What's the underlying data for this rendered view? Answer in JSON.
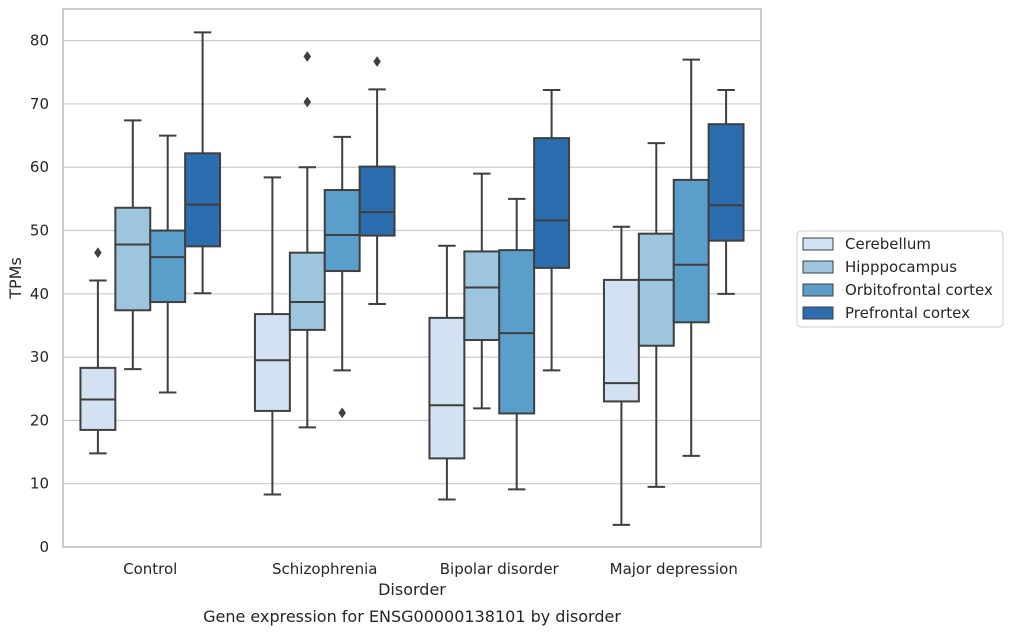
{
  "chart_data": {
    "type": "box",
    "title": "",
    "caption": "Gene expression for ENSG00000138101 by disorder",
    "xlabel": "Disorder",
    "ylabel": "TPMs",
    "ylim": [
      0,
      85
    ],
    "yticks": [
      0,
      10,
      20,
      30,
      40,
      50,
      60,
      70,
      80
    ],
    "grid": "horizontal",
    "legend_position": "right",
    "categories": [
      "Control",
      "Schizophrenia",
      "Bipolar disorder",
      "Major depression"
    ],
    "series": [
      {
        "name": "Cerebellum",
        "color": "#d3e2f2",
        "boxes": [
          {
            "whisker_low": 14.8,
            "q1": 18.5,
            "median": 23.3,
            "q3": 28.3,
            "whisker_high": 42.1,
            "outliers": [
              46.5
            ]
          },
          {
            "whisker_low": 8.3,
            "q1": 21.5,
            "median": 29.5,
            "q3": 36.8,
            "whisker_high": 58.4,
            "outliers": []
          },
          {
            "whisker_low": 7.5,
            "q1": 14.0,
            "median": 22.4,
            "q3": 36.2,
            "whisker_high": 47.6,
            "outliers": []
          },
          {
            "whisker_low": 3.5,
            "q1": 23.0,
            "median": 25.9,
            "q3": 42.2,
            "whisker_high": 50.6,
            "outliers": []
          }
        ]
      },
      {
        "name": "Hipppocampus",
        "color": "#9dc5de",
        "boxes": [
          {
            "whisker_low": 28.1,
            "q1": 37.4,
            "median": 47.8,
            "q3": 53.6,
            "whisker_high": 67.4,
            "outliers": []
          },
          {
            "whisker_low": 18.9,
            "q1": 34.3,
            "median": 38.7,
            "q3": 46.5,
            "whisker_high": 60.0,
            "outliers": [
              70.3,
              77.5
            ]
          },
          {
            "whisker_low": 21.9,
            "q1": 32.7,
            "median": 41.0,
            "q3": 46.7,
            "whisker_high": 59.0,
            "outliers": []
          },
          {
            "whisker_low": 9.5,
            "q1": 31.8,
            "median": 42.2,
            "q3": 49.5,
            "whisker_high": 63.8,
            "outliers": []
          }
        ]
      },
      {
        "name": "Orbitofrontal cortex",
        "color": "#5a9ecb",
        "boxes": [
          {
            "whisker_low": 24.4,
            "q1": 38.7,
            "median": 45.8,
            "q3": 50.0,
            "whisker_high": 65.0,
            "outliers": []
          },
          {
            "whisker_low": 27.9,
            "q1": 43.6,
            "median": 49.3,
            "q3": 56.4,
            "whisker_high": 64.8,
            "outliers": [
              21.2
            ]
          },
          {
            "whisker_low": 9.1,
            "q1": 21.1,
            "median": 33.8,
            "q3": 46.9,
            "whisker_high": 55.0,
            "outliers": []
          },
          {
            "whisker_low": 14.4,
            "q1": 35.5,
            "median": 44.6,
            "q3": 58.0,
            "whisker_high": 77.0,
            "outliers": []
          }
        ]
      },
      {
        "name": "Prefrontal cortex",
        "color": "#2a6eb0",
        "boxes": [
          {
            "whisker_low": 40.1,
            "q1": 47.5,
            "median": 54.1,
            "q3": 62.2,
            "whisker_high": 81.3,
            "outliers": []
          },
          {
            "whisker_low": 38.4,
            "q1": 49.2,
            "median": 52.9,
            "q3": 60.1,
            "whisker_high": 72.3,
            "outliers": [
              76.7
            ]
          },
          {
            "whisker_low": 27.9,
            "q1": 44.1,
            "median": 51.6,
            "q3": 64.6,
            "whisker_high": 72.2,
            "outliers": []
          },
          {
            "whisker_low": 40.0,
            "q1": 48.4,
            "median": 54.0,
            "q3": 66.8,
            "whisker_high": 72.2,
            "outliers": []
          }
        ]
      }
    ]
  }
}
